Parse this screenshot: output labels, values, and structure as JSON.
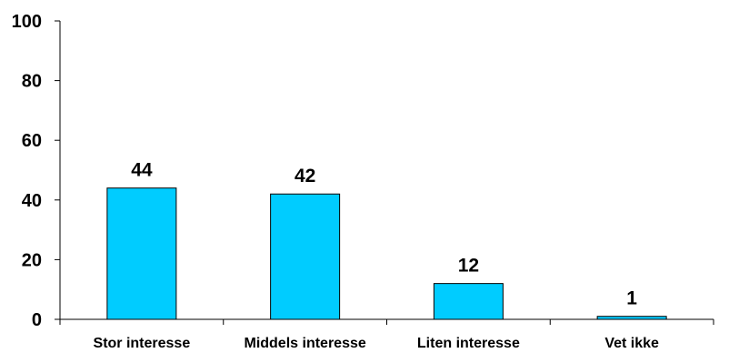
{
  "chart_data": {
    "type": "bar",
    "categories": [
      "Stor interesse",
      "Middels interesse",
      "Liten interesse",
      "Vet ikke"
    ],
    "values": [
      44,
      42,
      12,
      1
    ],
    "data_labels": [
      "44",
      "42",
      "12",
      "1"
    ],
    "ylim": [
      0,
      100
    ],
    "yticks": [
      0,
      20,
      40,
      60,
      80,
      100
    ],
    "ytick_labels": [
      "0",
      "20",
      "40",
      "60",
      "80",
      "100"
    ],
    "title": "",
    "xlabel": "",
    "ylabel": "",
    "grid": false,
    "legend": "none",
    "colors": {
      "bar_fill": "#00ccff",
      "bar_stroke": "#000000",
      "axis": "#000000"
    }
  }
}
